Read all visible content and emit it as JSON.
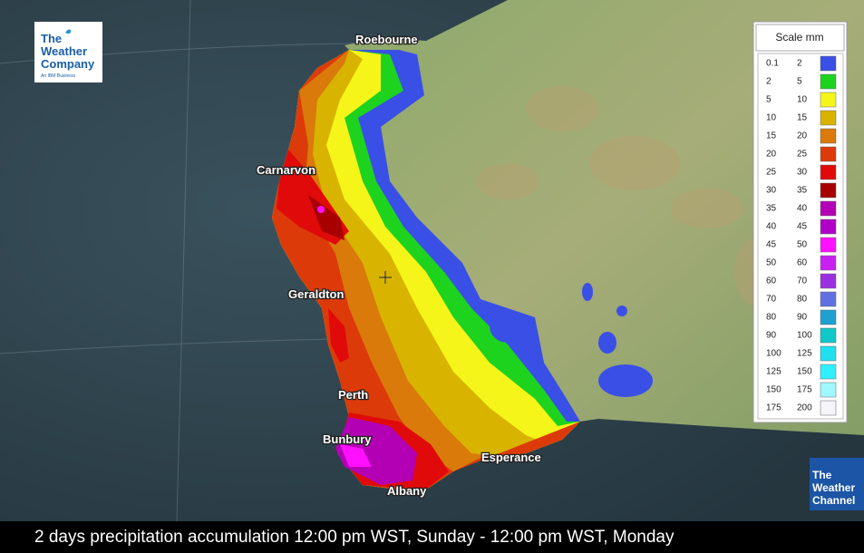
{
  "logo": {
    "lines": [
      "The",
      "Weather",
      "Company"
    ],
    "tagline": "An IBM Business"
  },
  "cities": [
    "Roebourne",
    "Carnarvon",
    "Geraldton",
    "Perth",
    "Bunbury",
    "Esperance",
    "Albany"
  ],
  "legend": {
    "title": "Scale mm",
    "rows": [
      {
        "from": 0.1,
        "to": 2,
        "color": "#3a4fe6"
      },
      {
        "from": 2,
        "to": 5,
        "color": "#1ed31e"
      },
      {
        "from": 5,
        "to": 10,
        "color": "#f5f51a"
      },
      {
        "from": 10,
        "to": 15,
        "color": "#d8b400"
      },
      {
        "from": 15,
        "to": 20,
        "color": "#d97a0a"
      },
      {
        "from": 20,
        "to": 25,
        "color": "#dd3a0a"
      },
      {
        "from": 25,
        "to": 30,
        "color": "#e00a0a"
      },
      {
        "from": 30,
        "to": 35,
        "color": "#a80000"
      },
      {
        "from": 35,
        "to": 40,
        "color": "#b400b4"
      },
      {
        "from": 40,
        "to": 45,
        "color": "#b000c8"
      },
      {
        "from": 45,
        "to": 50,
        "color": "#ff10ff"
      },
      {
        "from": 50,
        "to": 60,
        "color": "#c820f0"
      },
      {
        "from": 60,
        "to": 70,
        "color": "#9a30e0"
      },
      {
        "from": 70,
        "to": 80,
        "color": "#6070e0"
      },
      {
        "from": 80,
        "to": 90,
        "color": "#1fa0d0"
      },
      {
        "from": 90,
        "to": 100,
        "color": "#10c8c8"
      },
      {
        "from": 100,
        "to": 125,
        "color": "#20e0f0"
      },
      {
        "from": 125,
        "to": 150,
        "color": "#30f0ff"
      },
      {
        "from": 150,
        "to": 175,
        "color": "#a0f8ff"
      },
      {
        "from": 175,
        "to": 200,
        "color": "#f4f4fa"
      }
    ]
  },
  "channel_logo": [
    "The",
    "Weather",
    "Channel"
  ],
  "caption": "2 days precipitation accumulation 12:00 pm WST, Sunday - 12:00 pm WST, Monday"
}
